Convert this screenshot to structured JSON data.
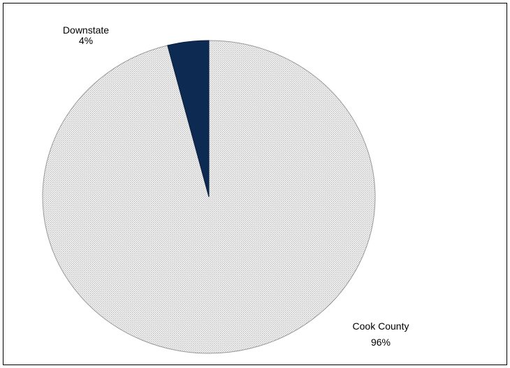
{
  "chart_data": {
    "type": "pie",
    "title": "",
    "slices": [
      {
        "label": "Cook County",
        "percent_label": "96%",
        "value": 96,
        "color": "#e6e6e6",
        "pattern": "dotted"
      },
      {
        "label": "Downstate",
        "percent_label": "4%",
        "value": 4,
        "color": "#0d2a52"
      }
    ],
    "legend": "none",
    "start_angle": "top (12 o'clock)",
    "direction": "counterclockwise for Downstate slice"
  }
}
